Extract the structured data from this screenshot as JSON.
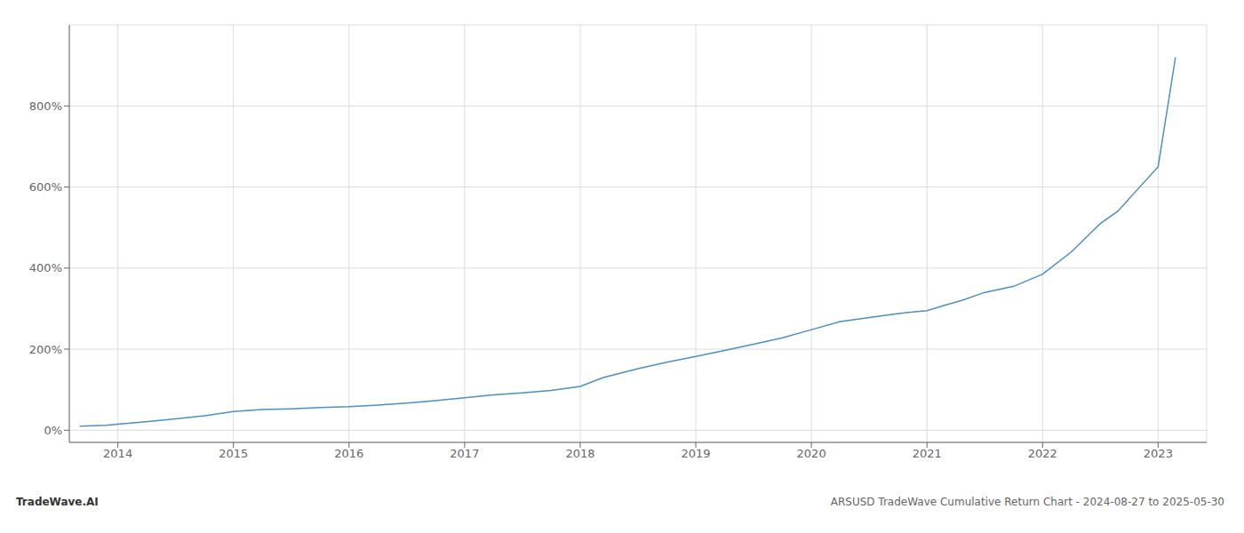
{
  "chart_data": {
    "type": "line",
    "title": "ARSUSD TradeWave Cumulative Return Chart - 2024-08-27 to 2025-05-30",
    "annotations": [
      "TradeWave.AI"
    ],
    "color": "#4a90c4",
    "grid": true,
    "x": [
      2013.67,
      2013.9,
      2014.0,
      2014.2,
      2014.5,
      2014.75,
      2015.0,
      2015.25,
      2015.5,
      2015.75,
      2016.0,
      2016.25,
      2016.5,
      2016.75,
      2017.0,
      2017.25,
      2017.5,
      2017.75,
      2018.0,
      2018.2,
      2018.5,
      2018.75,
      2019.0,
      2019.25,
      2019.5,
      2019.75,
      2020.0,
      2020.25,
      2020.5,
      2020.75,
      2021.0,
      2021.15,
      2021.3,
      2021.5,
      2021.75,
      2022.0,
      2022.25,
      2022.5,
      2022.65,
      2023.0,
      2023.15
    ],
    "values": [
      10,
      12,
      15,
      20,
      28,
      36,
      46,
      51,
      53,
      56,
      58,
      62,
      67,
      73,
      80,
      87,
      92,
      98,
      108,
      130,
      152,
      168,
      182,
      197,
      212,
      228,
      248,
      268,
      278,
      288,
      295,
      308,
      320,
      340,
      355,
      385,
      440,
      510,
      540,
      650,
      920
    ],
    "xlim": [
      2013.58,
      2023.42
    ],
    "xticks": [
      2014,
      2015,
      2016,
      2017,
      2018,
      2019,
      2020,
      2021,
      2022,
      2023
    ],
    "ylim": [
      -30,
      1000
    ],
    "yticks": [
      {
        "value": 0,
        "label": "0%"
      },
      {
        "value": 200,
        "label": "200%"
      },
      {
        "value": 400,
        "label": "400%"
      },
      {
        "value": 600,
        "label": "600%"
      },
      {
        "value": 800,
        "label": "800%"
      }
    ]
  }
}
